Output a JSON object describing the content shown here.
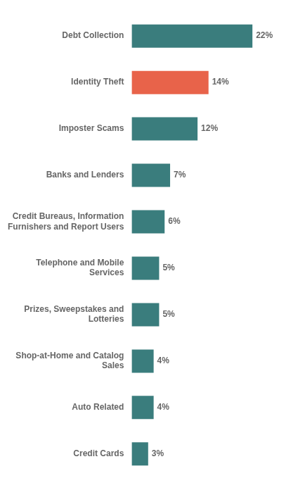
{
  "chart_data": {
    "type": "bar",
    "orientation": "horizontal",
    "categories": [
      "Credit Cards",
      "Auto Related",
      "Shop-at-Home and Catalog\nSales",
      "Prizes, Sweepstakes and\nLotteries",
      "Telephone and Mobile\nServices",
      "Credit Bureaus, Information\nFurnishers and Report Users",
      "Banks and Lenders",
      "Imposter Scams",
      "Identity Theft",
      "Debt Collection"
    ],
    "values": [
      3,
      4,
      4,
      5,
      5,
      6,
      7,
      12,
      14,
      22
    ],
    "value_labels": [
      "3%",
      "4%",
      "4%",
      "5%",
      "5%",
      "6%",
      "7%",
      "12%",
      "14%",
      "22%"
    ],
    "colors": [
      "#3a7d7d",
      "#3a7d7d",
      "#3a7d7d",
      "#3a7d7d",
      "#3a7d7d",
      "#3a7d7d",
      "#3a7d7d",
      "#3a7d7d",
      "#e8634a",
      "#3a7d7d"
    ],
    "xlim": [
      0,
      28
    ],
    "grid": false,
    "tick_labels": "y",
    "data_labels": true
  }
}
